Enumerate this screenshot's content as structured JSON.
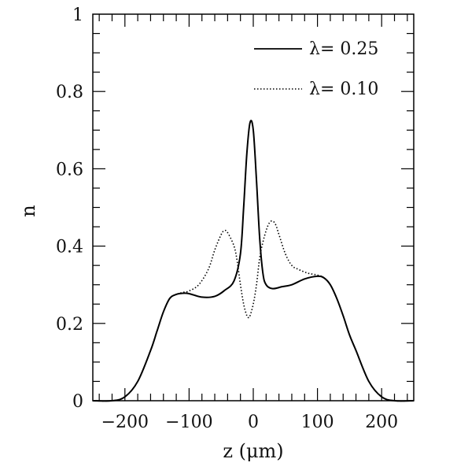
{
  "chart_data": {
    "type": "line",
    "xlabel": "z (μm)",
    "ylabel": "n",
    "xlim": [
      -250,
      250
    ],
    "ylim": [
      0,
      1
    ],
    "xticks": [
      -200,
      -100,
      0,
      100,
      200
    ],
    "xtick_labels": [
      "−200",
      "−100",
      "0",
      "100",
      "200"
    ],
    "yticks": [
      0,
      0.2,
      0.4,
      0.6,
      0.8,
      1
    ],
    "ytick_labels": [
      "0",
      "0.2",
      "0.4",
      "0.6",
      "0.8",
      "1"
    ],
    "grid": false,
    "legend_position": "top-right",
    "series": [
      {
        "name": "λ= 0.25",
        "style": "solid",
        "color": "#000000",
        "x": [
          -250,
          -220,
          -200,
          -180,
          -160,
          -150,
          -140,
          -130,
          -120,
          -110,
          -100,
          -80,
          -60,
          -45,
          -30,
          -20,
          -15,
          -10,
          -5,
          0,
          5,
          10,
          15,
          20,
          30,
          45,
          60,
          80,
          100,
          110,
          120,
          130,
          140,
          150,
          160,
          180,
          200,
          220,
          250
        ],
        "y": [
          0,
          0,
          0.01,
          0.05,
          0.13,
          0.18,
          0.23,
          0.265,
          0.275,
          0.278,
          0.277,
          0.268,
          0.27,
          0.285,
          0.31,
          0.38,
          0.5,
          0.64,
          0.72,
          0.7,
          0.57,
          0.42,
          0.33,
          0.3,
          0.29,
          0.295,
          0.3,
          0.315,
          0.322,
          0.318,
          0.3,
          0.265,
          0.22,
          0.17,
          0.13,
          0.05,
          0.01,
          0,
          0
        ]
      },
      {
        "name": "λ= 0.10",
        "style": "dotted",
        "color": "#000000",
        "x": [
          -250,
          -220,
          -200,
          -180,
          -160,
          -150,
          -140,
          -130,
          -120,
          -110,
          -100,
          -85,
          -70,
          -60,
          -50,
          -45,
          -40,
          -30,
          -25,
          -20,
          -15,
          -10,
          -7,
          -5,
          0,
          5,
          10,
          15,
          20,
          25,
          30,
          35,
          40,
          50,
          60,
          70,
          85,
          100,
          110,
          120,
          130,
          140,
          150,
          160,
          180,
          200,
          220,
          250
        ],
        "y": [
          0,
          0,
          0.01,
          0.05,
          0.13,
          0.18,
          0.23,
          0.265,
          0.275,
          0.28,
          0.284,
          0.3,
          0.34,
          0.39,
          0.43,
          0.44,
          0.435,
          0.4,
          0.36,
          0.3,
          0.25,
          0.22,
          0.215,
          0.22,
          0.25,
          0.3,
          0.37,
          0.41,
          0.44,
          0.46,
          0.465,
          0.455,
          0.43,
          0.38,
          0.35,
          0.34,
          0.33,
          0.325,
          0.318,
          0.3,
          0.265,
          0.22,
          0.17,
          0.13,
          0.05,
          0.01,
          0,
          0
        ]
      }
    ]
  }
}
